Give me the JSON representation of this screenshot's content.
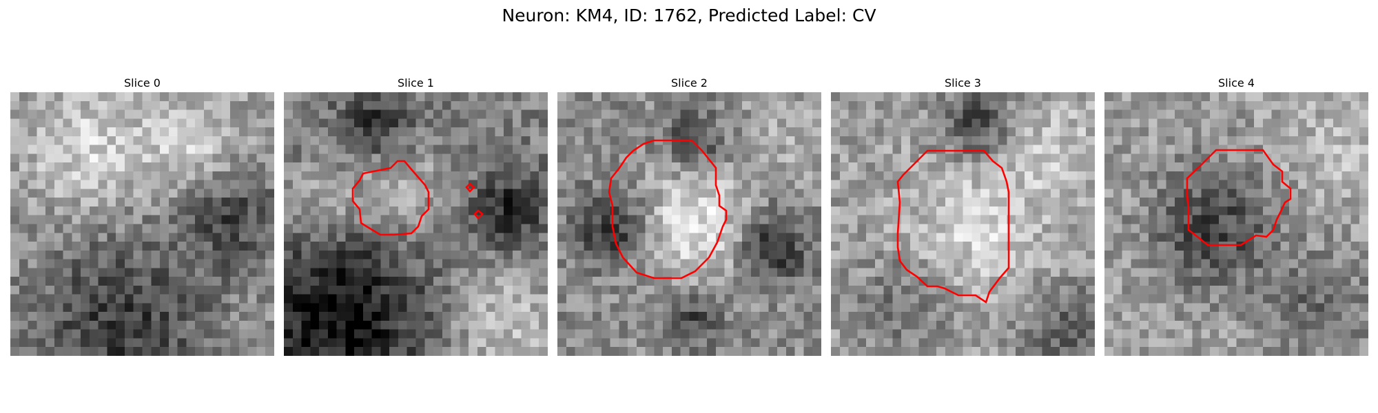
{
  "figure": {
    "title": "Neuron: KM4, ID: 1762, Predicted Label: CV",
    "contour_color": "#ff0000"
  },
  "slices": [
    {
      "title": "Slice 0"
    },
    {
      "title": "Slice 1"
    },
    {
      "title": "Slice 2"
    },
    {
      "title": "Slice 3"
    },
    {
      "title": "Slice 4"
    }
  ]
}
